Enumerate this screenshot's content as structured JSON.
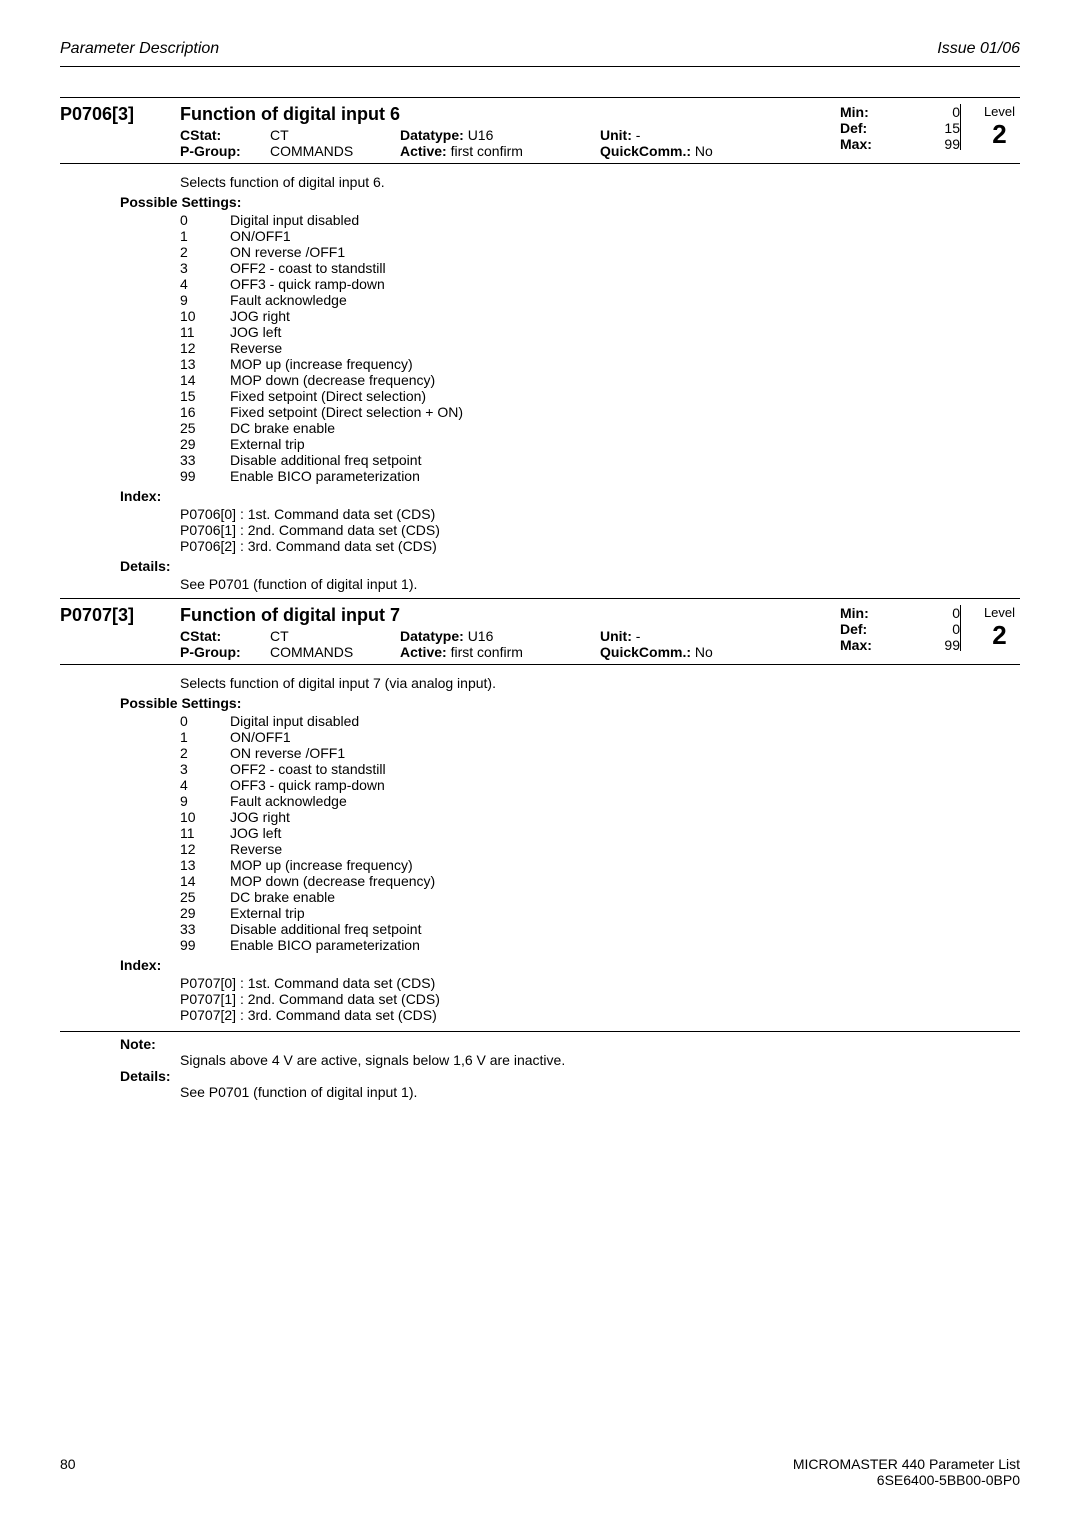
{
  "header": {
    "left": "Parameter Description",
    "right": "Issue 01/06"
  },
  "params": [
    {
      "id": "P0706[3]",
      "title": "Function of digital input 6",
      "cstat_label": "CStat:",
      "cstat_value": "CT",
      "pgroup_label": "P-Group:",
      "pgroup_value": "COMMANDS",
      "datatype_label": "Datatype:",
      "datatype_value": "U16",
      "active_label": "Active:",
      "active_value": "first confirm",
      "unit_label": "Unit:",
      "unit_value": "-",
      "quickcomm_label": "QuickComm.:",
      "quickcomm_value": "No",
      "min_label": "Min:",
      "min_value": "0",
      "def_label": "Def:",
      "def_value": "15",
      "max_label": "Max:",
      "max_value": "99",
      "level_label": "Level",
      "level_value": "2",
      "desc": "Selects function of digital input 6.",
      "possible_settings_label": "Possible Settings:",
      "settings": [
        {
          "code": "0",
          "desc": "Digital input disabled"
        },
        {
          "code": "1",
          "desc": "ON/OFF1"
        },
        {
          "code": "2",
          "desc": "ON reverse /OFF1"
        },
        {
          "code": "3",
          "desc": "OFF2   - coast to standstill"
        },
        {
          "code": "4",
          "desc": "OFF3   - quick ramp-down"
        },
        {
          "code": "9",
          "desc": "Fault acknowledge"
        },
        {
          "code": "10",
          "desc": "JOG right"
        },
        {
          "code": "11",
          "desc": "JOG left"
        },
        {
          "code": "12",
          "desc": "Reverse"
        },
        {
          "code": "13",
          "desc": "MOP up   (increase frequency)"
        },
        {
          "code": "14",
          "desc": "MOP down (decrease frequency)"
        },
        {
          "code": "15",
          "desc": "Fixed setpoint (Direct selection)"
        },
        {
          "code": "16",
          "desc": "Fixed setpoint (Direct selection + ON)"
        },
        {
          "code": "25",
          "desc": "DC brake enable"
        },
        {
          "code": "29",
          "desc": "External trip"
        },
        {
          "code": "33",
          "desc": "Disable additional freq setpoint"
        },
        {
          "code": "99",
          "desc": "Enable BICO parameterization"
        }
      ],
      "index_label": "Index:",
      "index": [
        "P0706[0] :  1st. Command data set (CDS)",
        "P0706[1] :  2nd. Command data set (CDS)",
        "P0706[2] :  3rd. Command data set (CDS)"
      ],
      "details_label": "Details:",
      "details_text": "See P0701 (function of digital input 1)."
    },
    {
      "id": "P0707[3]",
      "title": "Function of digital input 7",
      "cstat_label": "CStat:",
      "cstat_value": "CT",
      "pgroup_label": "P-Group:",
      "pgroup_value": "COMMANDS",
      "datatype_label": "Datatype:",
      "datatype_value": "U16",
      "active_label": "Active:",
      "active_value": "first confirm",
      "unit_label": "Unit:",
      "unit_value": "-",
      "quickcomm_label": "QuickComm.:",
      "quickcomm_value": "No",
      "min_label": "Min:",
      "min_value": "0",
      "def_label": "Def:",
      "def_value": "0",
      "max_label": "Max:",
      "max_value": "99",
      "level_label": "Level",
      "level_value": "2",
      "desc": "Selects function of digital input 7 (via analog input).",
      "possible_settings_label": "Possible Settings:",
      "settings": [
        {
          "code": "0",
          "desc": "Digital input disabled"
        },
        {
          "code": "1",
          "desc": "ON/OFF1"
        },
        {
          "code": "2",
          "desc": "ON reverse /OFF1"
        },
        {
          "code": "3",
          "desc": "OFF2   - coast to standstill"
        },
        {
          "code": "4",
          "desc": "OFF3   - quick ramp-down"
        },
        {
          "code": "9",
          "desc": "Fault acknowledge"
        },
        {
          "code": "10",
          "desc": "JOG right"
        },
        {
          "code": "11",
          "desc": "JOG left"
        },
        {
          "code": "12",
          "desc": "Reverse"
        },
        {
          "code": "13",
          "desc": "MOP up   (increase frequency)"
        },
        {
          "code": "14",
          "desc": "MOP down (decrease frequency)"
        },
        {
          "code": "25",
          "desc": "DC brake enable"
        },
        {
          "code": "29",
          "desc": "External trip"
        },
        {
          "code": "33",
          "desc": "Disable additional freq setpoint"
        },
        {
          "code": "99",
          "desc": "Enable BICO parameterization"
        }
      ],
      "index_label": "Index:",
      "index": [
        "P0707[0] :  1st. Command data set (CDS)",
        "P0707[1] :  2nd. Command data set (CDS)",
        "P0707[2] :  3rd. Command data set (CDS)"
      ],
      "note_label": "Note:",
      "note_text": "Signals above 4 V are active, signals below 1,6 V are inactive.",
      "details_label": "Details:",
      "details_text": "See P0701 (function of digital input 1)."
    }
  ],
  "footer": {
    "page": "80",
    "right1": "MICROMASTER 440   Parameter List",
    "right2": "6SE6400-5BB00-0BP0"
  }
}
